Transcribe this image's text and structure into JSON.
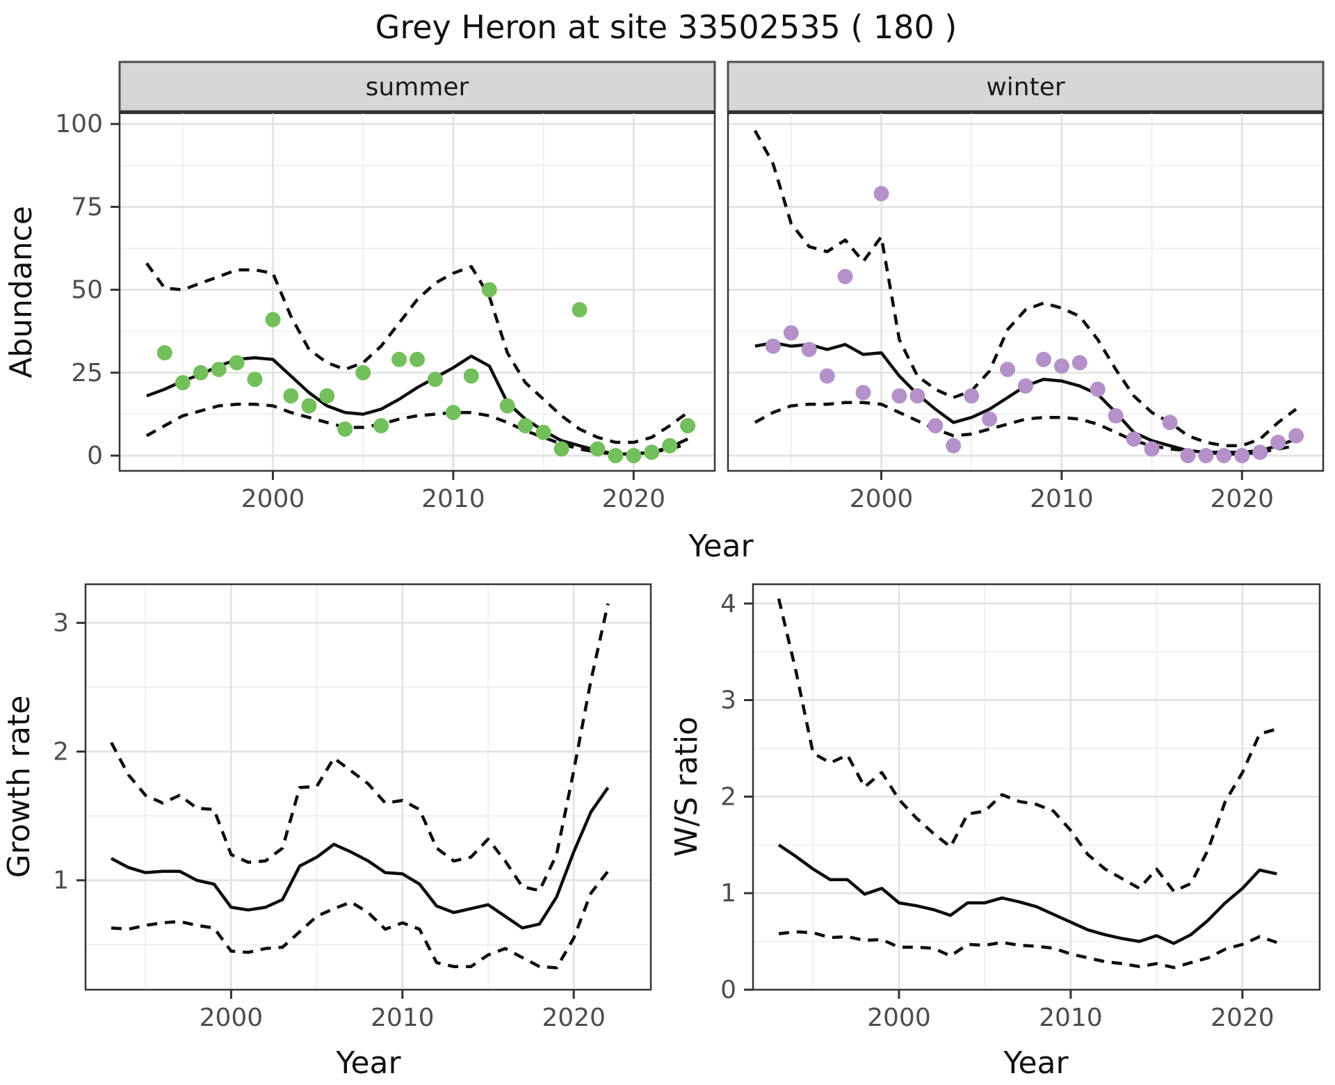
{
  "title": "Grey Heron at site 33502535 ( 180 )",
  "axis_labels": {
    "x": "Year",
    "abundance": "Abundance",
    "growth": "Growth rate",
    "ws": "W/S ratio"
  },
  "colors": {
    "summer_point": "#73bf5b",
    "winter_point": "#b491c8",
    "line": "#0d0d0d",
    "grid_major": "#e3e3e3",
    "grid_minor": "#f0f0f0",
    "strip_bg": "#d6d6d6",
    "panel_border": "#333333",
    "axis_text": "#4d4d4d",
    "text": "#111111"
  },
  "chart_data": {
    "abundance": {
      "type": "scatter",
      "title": "Grey Heron at site 33502535 ( 180 )",
      "xlabel": "Year",
      "ylabel": "Abundance",
      "xlim": [
        1991.5,
        2024.5
      ],
      "ylim": [
        -4.6,
        103.4
      ],
      "xticks": [
        2000,
        2010,
        2020
      ],
      "yticks": [
        0,
        25,
        50,
        75,
        100
      ],
      "minor_xticks": [
        1995,
        2005,
        2015
      ],
      "minor_yticks": [
        12.5,
        37.5,
        62.5,
        87.5
      ],
      "grid": true,
      "legend": "none",
      "facets": [
        {
          "label": "summer",
          "obs_years": [
            1994,
            1995,
            1996,
            1997,
            1998,
            1999,
            2000,
            2001,
            2002,
            2003,
            2004,
            2005,
            2006,
            2007,
            2008,
            2009,
            2010,
            2011,
            2012,
            2013,
            2014,
            2015,
            2016,
            2017,
            2018,
            2019,
            2020,
            2021,
            2022,
            2023
          ],
          "obs": [
            31,
            22,
            25,
            26,
            28,
            23,
            41,
            18,
            15,
            18,
            8,
            25,
            9,
            29,
            29,
            23,
            13,
            24,
            50,
            15,
            9,
            7,
            2,
            44,
            2,
            0,
            0,
            1,
            3,
            9
          ],
          "fit_years": [
            1993,
            1994,
            1995,
            1996,
            1997,
            1998,
            1999,
            2000,
            2001,
            2002,
            2003,
            2004,
            2005,
            2006,
            2007,
            2008,
            2009,
            2010,
            2011,
            2012,
            2013,
            2014,
            2015,
            2016,
            2017,
            2018,
            2019,
            2020,
            2021,
            2022,
            2023
          ],
          "fit": [
            18,
            20,
            22.5,
            24.5,
            27,
            29,
            29.5,
            29,
            24,
            19,
            15,
            13,
            12.5,
            14,
            17,
            20.5,
            23.5,
            26.5,
            30,
            27,
            16,
            11,
            7.5,
            4.5,
            3,
            1.5,
            0.5,
            0.5,
            1,
            2.5,
            5
          ],
          "upper": [
            58,
            50.5,
            50,
            52,
            54,
            56,
            56,
            55,
            42,
            32,
            28,
            26,
            28,
            33,
            40,
            47,
            52,
            55,
            57,
            48,
            31,
            22,
            17,
            12,
            8,
            5.5,
            4,
            4,
            5.5,
            9,
            13
          ],
          "lower": [
            6,
            9,
            12,
            13.5,
            15,
            15.5,
            15.5,
            15,
            13,
            11.5,
            10,
            8.5,
            8.5,
            9.5,
            11,
            12,
            12.5,
            13,
            13,
            12,
            10,
            7.5,
            5.5,
            3.5,
            2,
            1,
            0.5,
            0.5,
            1,
            2,
            3.5
          ]
        },
        {
          "label": "winter",
          "obs_years": [
            1994,
            1995,
            1996,
            1997,
            1998,
            1999,
            2000,
            2001,
            2002,
            2003,
            2004,
            2005,
            2006,
            2007,
            2008,
            2009,
            2010,
            2011,
            2012,
            2013,
            2014,
            2015,
            2016,
            2017,
            2018,
            2019,
            2020,
            2021,
            2022,
            2023
          ],
          "obs": [
            33,
            37,
            32,
            24,
            54,
            19,
            79,
            18,
            18,
            9,
            3,
            18,
            11,
            26,
            21,
            29,
            27,
            28,
            20,
            12,
            5,
            2,
            10,
            0,
            0,
            0,
            0,
            1,
            4,
            6
          ],
          "fit_years": [
            1993,
            1994,
            1995,
            1996,
            1997,
            1998,
            1999,
            2000,
            2001,
            2002,
            2003,
            2004,
            2005,
            2006,
            2007,
            2008,
            2009,
            2010,
            2011,
            2012,
            2013,
            2014,
            2015,
            2016,
            2017,
            2018,
            2019,
            2020,
            2021,
            2022,
            2023
          ],
          "fit": [
            33,
            34,
            33,
            33.5,
            32,
            33.5,
            30.5,
            31,
            24,
            18.5,
            14,
            10,
            11.5,
            14,
            17.5,
            21,
            23,
            22.5,
            21,
            18.5,
            13,
            7,
            4.5,
            3,
            1.5,
            1,
            1,
            1,
            1.5,
            3,
            5
          ],
          "upper": [
            98,
            88,
            70,
            63,
            61.5,
            65,
            58.5,
            66,
            35,
            24,
            20,
            17.5,
            19.5,
            25.5,
            38,
            44,
            46,
            44.5,
            42,
            35,
            26,
            18,
            13,
            10,
            6,
            4,
            3,
            3,
            5,
            10,
            14
          ],
          "lower": [
            10,
            13,
            15,
            15.5,
            15.5,
            16,
            16,
            15.5,
            13,
            10.5,
            8,
            6,
            6.5,
            8,
            9.5,
            11,
            11.5,
            11.5,
            11,
            9.5,
            7,
            4.5,
            3,
            2,
            1.5,
            1,
            0.5,
            0.5,
            1,
            2,
            3
          ]
        }
      ]
    },
    "growth_rate": {
      "type": "line",
      "xlabel": "Year",
      "ylabel": "Growth rate",
      "xlim": [
        1991.5,
        2024.5
      ],
      "ylim": [
        0.15,
        3.3
      ],
      "xticks": [
        2000,
        2010,
        2020
      ],
      "yticks": [
        1,
        2,
        3
      ],
      "minor_xticks": [
        1995,
        2005,
        2015
      ],
      "minor_yticks": [
        0.5,
        1.5,
        2.5
      ],
      "grid": true,
      "years": [
        1993,
        1994,
        1995,
        1996,
        1997,
        1998,
        1999,
        2000,
        2001,
        2002,
        2003,
        2004,
        2005,
        2006,
        2007,
        2008,
        2009,
        2010,
        2011,
        2012,
        2013,
        2014,
        2015,
        2016,
        2017,
        2018,
        2019,
        2020,
        2021,
        2022
      ],
      "fit": [
        1.17,
        1.1,
        1.06,
        1.07,
        1.07,
        1.0,
        0.97,
        0.79,
        0.77,
        0.79,
        0.85,
        1.11,
        1.18,
        1.28,
        1.22,
        1.15,
        1.06,
        1.05,
        0.97,
        0.8,
        0.75,
        0.78,
        0.81,
        0.72,
        0.63,
        0.66,
        0.87,
        1.22,
        1.53,
        1.72
      ],
      "upper": [
        2.07,
        1.82,
        1.66,
        1.6,
        1.66,
        1.56,
        1.55,
        1.2,
        1.14,
        1.15,
        1.25,
        1.72,
        1.73,
        1.95,
        1.85,
        1.75,
        1.6,
        1.62,
        1.55,
        1.25,
        1.15,
        1.18,
        1.32,
        1.15,
        0.95,
        0.92,
        1.2,
        1.85,
        2.55,
        3.15
      ],
      "lower": [
        0.63,
        0.62,
        0.65,
        0.67,
        0.68,
        0.65,
        0.63,
        0.45,
        0.44,
        0.47,
        0.48,
        0.6,
        0.72,
        0.78,
        0.83,
        0.75,
        0.62,
        0.67,
        0.62,
        0.36,
        0.33,
        0.33,
        0.42,
        0.47,
        0.4,
        0.33,
        0.32,
        0.55,
        0.9,
        1.07
      ]
    },
    "ws_ratio": {
      "type": "line",
      "xlabel": "Year",
      "ylabel": "W/S ratio",
      "xlim": [
        1991.5,
        2024.5
      ],
      "ylim": [
        0,
        4.2
      ],
      "xticks": [
        2000,
        2010,
        2020
      ],
      "yticks": [
        0,
        1,
        2,
        3,
        4
      ],
      "minor_xticks": [
        1995,
        2005,
        2015
      ],
      "minor_yticks": [
        0.5,
        1.5,
        2.5,
        3.5
      ],
      "grid": true,
      "years": [
        1993,
        1994,
        1995,
        1996,
        1997,
        1998,
        1999,
        2000,
        2001,
        2002,
        2003,
        2004,
        2005,
        2006,
        2007,
        2008,
        2009,
        2010,
        2011,
        2012,
        2013,
        2014,
        2015,
        2016,
        2017,
        2018,
        2019,
        2020,
        2021,
        2022
      ],
      "fit": [
        1.5,
        1.38,
        1.25,
        1.14,
        1.14,
        0.99,
        1.05,
        0.9,
        0.87,
        0.83,
        0.77,
        0.9,
        0.9,
        0.95,
        0.91,
        0.86,
        0.78,
        0.7,
        0.62,
        0.57,
        0.53,
        0.5,
        0.56,
        0.48,
        0.57,
        0.72,
        0.9,
        1.05,
        1.24,
        1.2
      ],
      "upper": [
        4.05,
        3.3,
        2.45,
        2.35,
        2.43,
        2.1,
        2.25,
        1.97,
        1.78,
        1.62,
        1.48,
        1.82,
        1.85,
        2.02,
        1.95,
        1.92,
        1.85,
        1.65,
        1.4,
        1.25,
        1.15,
        1.05,
        1.25,
        1.02,
        1.1,
        1.45,
        1.95,
        2.25,
        2.65,
        2.7
      ],
      "lower": [
        0.58,
        0.6,
        0.59,
        0.54,
        0.55,
        0.51,
        0.52,
        0.44,
        0.44,
        0.43,
        0.35,
        0.47,
        0.46,
        0.49,
        0.46,
        0.45,
        0.43,
        0.37,
        0.33,
        0.29,
        0.27,
        0.24,
        0.27,
        0.23,
        0.28,
        0.33,
        0.42,
        0.47,
        0.55,
        0.49
      ]
    }
  }
}
